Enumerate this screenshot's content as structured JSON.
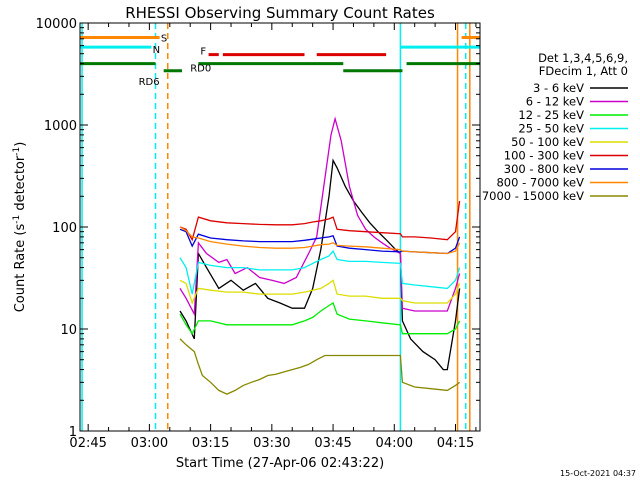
{
  "chart_data": {
    "type": "line",
    "title": "RHESSI Observing Summary Count Rates",
    "xlabel": "Start Time (27-Apr-06 02:43:22)",
    "ylabel_main": "Count Rate (s",
    "ylabel_sup1": "-1",
    "ylabel_mid": " detector",
    "ylabel_sup2": "-1",
    "ylabel_end": ")",
    "x_unit": "minutes after 02:43:22",
    "xlim": [
      0,
      98
    ],
    "ylim": [
      1,
      10000
    ],
    "y_scale": "log",
    "x_ticks": [
      {
        "t": 2,
        "label": "02:45"
      },
      {
        "t": 17,
        "label": "03:00"
      },
      {
        "t": 32,
        "label": "03:15"
      },
      {
        "t": 47,
        "label": "03:30"
      },
      {
        "t": 62,
        "label": "03:45"
      },
      {
        "t": 77,
        "label": "04:00"
      },
      {
        "t": 92,
        "label": "04:15"
      }
    ],
    "y_ticks": [
      {
        "v": 1,
        "label": "1"
      },
      {
        "v": 10,
        "label": "10"
      },
      {
        "v": 100,
        "label": "100"
      },
      {
        "v": 1000,
        "label": "1000"
      },
      {
        "v": 10000,
        "label": "10000"
      }
    ],
    "legend_header": [
      "Det 1,3,4,5,6,9,",
      "FDecim 1, Att 0"
    ],
    "legend_position": "right",
    "series": [
      {
        "name": "3 - 6 keV",
        "color": "#000000",
        "points": [
          [
            24.5,
            15
          ],
          [
            26,
            12
          ],
          [
            28,
            8
          ],
          [
            29,
            55
          ],
          [
            31,
            40
          ],
          [
            34,
            25
          ],
          [
            37,
            30
          ],
          [
            40,
            24
          ],
          [
            43,
            28
          ],
          [
            46,
            20
          ],
          [
            49,
            18
          ],
          [
            52,
            16
          ],
          [
            55,
            16
          ],
          [
            57,
            25
          ],
          [
            59,
            60
          ],
          [
            61,
            200
          ],
          [
            62,
            450
          ],
          [
            63,
            380
          ],
          [
            65,
            250
          ],
          [
            67,
            180
          ],
          [
            69,
            140
          ],
          [
            71,
            110
          ],
          [
            73,
            90
          ],
          [
            75,
            75
          ],
          [
            77,
            62
          ],
          [
            78.5,
            55
          ],
          [
            79,
            12
          ],
          [
            81,
            8
          ],
          [
            84,
            6
          ],
          [
            87,
            5
          ],
          [
            89,
            4
          ],
          [
            90,
            4
          ],
          [
            92,
            12
          ],
          [
            93,
            25
          ]
        ]
      },
      {
        "name": "6 - 12 keV",
        "color": "#cc00cc",
        "points": [
          [
            24.5,
            25
          ],
          [
            26,
            20
          ],
          [
            28,
            14
          ],
          [
            29,
            70
          ],
          [
            31,
            55
          ],
          [
            34,
            45
          ],
          [
            36,
            48
          ],
          [
            38,
            35
          ],
          [
            41,
            40
          ],
          [
            44,
            32
          ],
          [
            47,
            30
          ],
          [
            50,
            28
          ],
          [
            53,
            32
          ],
          [
            56,
            55
          ],
          [
            58,
            80
          ],
          [
            60,
            300
          ],
          [
            61.5,
            800
          ],
          [
            62.5,
            1150
          ],
          [
            64,
            700
          ],
          [
            66,
            250
          ],
          [
            68,
            130
          ],
          [
            70,
            95
          ],
          [
            72,
            80
          ],
          [
            74,
            70
          ],
          [
            76,
            62
          ],
          [
            78.5,
            55
          ],
          [
            79,
            16
          ],
          [
            82,
            15
          ],
          [
            86,
            15
          ],
          [
            90,
            15
          ],
          [
            92,
            25
          ],
          [
            93,
            35
          ]
        ]
      },
      {
        "name": "12 - 25 keV",
        "color": "#00ee00",
        "points": [
          [
            24.5,
            14
          ],
          [
            26,
            11
          ],
          [
            27.5,
            9
          ],
          [
            29,
            12
          ],
          [
            32,
            12
          ],
          [
            36,
            11
          ],
          [
            40,
            11
          ],
          [
            44,
            11
          ],
          [
            48,
            11
          ],
          [
            52,
            11
          ],
          [
            55,
            12
          ],
          [
            57,
            13
          ],
          [
            59,
            15
          ],
          [
            61,
            17
          ],
          [
            62,
            18
          ],
          [
            63,
            14
          ],
          [
            66,
            12.5
          ],
          [
            70,
            12
          ],
          [
            74,
            11.5
          ],
          [
            78.5,
            11
          ],
          [
            79,
            9
          ],
          [
            82,
            9
          ],
          [
            86,
            9
          ],
          [
            90,
            9
          ],
          [
            92,
            10
          ],
          [
            93,
            12
          ]
        ]
      },
      {
        "name": "25 - 50 keV",
        "color": "#00f0f0",
        "points": [
          [
            24.5,
            50
          ],
          [
            26,
            40
          ],
          [
            27.5,
            22
          ],
          [
            29,
            45
          ],
          [
            32,
            42
          ],
          [
            36,
            40
          ],
          [
            40,
            40
          ],
          [
            44,
            38
          ],
          [
            48,
            38
          ],
          [
            52,
            38
          ],
          [
            55,
            40
          ],
          [
            57,
            44
          ],
          [
            59,
            48
          ],
          [
            61,
            52
          ],
          [
            62,
            58
          ],
          [
            63,
            48
          ],
          [
            66,
            46
          ],
          [
            70,
            46
          ],
          [
            74,
            45
          ],
          [
            78.5,
            44
          ],
          [
            79,
            28
          ],
          [
            82,
            27
          ],
          [
            86,
            26
          ],
          [
            90,
            25
          ],
          [
            92,
            30
          ],
          [
            93,
            40
          ]
        ]
      },
      {
        "name": "50 - 100 keV",
        "color": "#dddd00",
        "points": [
          [
            24.5,
            30
          ],
          [
            26,
            28
          ],
          [
            27.5,
            18
          ],
          [
            29,
            25
          ],
          [
            32,
            24
          ],
          [
            36,
            23
          ],
          [
            40,
            23
          ],
          [
            44,
            22
          ],
          [
            48,
            22
          ],
          [
            52,
            22
          ],
          [
            55,
            23
          ],
          [
            57,
            24
          ],
          [
            59,
            25
          ],
          [
            61,
            28
          ],
          [
            62,
            30
          ],
          [
            63,
            22
          ],
          [
            66,
            21
          ],
          [
            70,
            21
          ],
          [
            74,
            20
          ],
          [
            78.5,
            20
          ],
          [
            79,
            19
          ],
          [
            82,
            18
          ],
          [
            86,
            18
          ],
          [
            90,
            18
          ],
          [
            92,
            22
          ],
          [
            93,
            28
          ]
        ]
      },
      {
        "name": "100 - 300 keV",
        "color": "#dd0000",
        "points": [
          [
            24.5,
            100
          ],
          [
            26,
            95
          ],
          [
            27.5,
            75
          ],
          [
            29,
            125
          ],
          [
            32,
            115
          ],
          [
            36,
            110
          ],
          [
            40,
            108
          ],
          [
            44,
            106
          ],
          [
            48,
            105
          ],
          [
            52,
            105
          ],
          [
            55,
            108
          ],
          [
            57,
            112
          ],
          [
            59,
            115
          ],
          [
            61,
            120
          ],
          [
            62,
            125
          ],
          [
            63,
            95
          ],
          [
            66,
            92
          ],
          [
            70,
            90
          ],
          [
            74,
            88
          ],
          [
            78.5,
            86
          ],
          [
            79,
            80
          ],
          [
            82,
            80
          ],
          [
            86,
            78
          ],
          [
            90,
            75
          ],
          [
            92,
            90
          ],
          [
            93,
            180
          ]
        ]
      },
      {
        "name": "300 - 800 keV",
        "color": "#0000dd",
        "points": [
          [
            24.5,
            95
          ],
          [
            26,
            90
          ],
          [
            27.5,
            65
          ],
          [
            29,
            85
          ],
          [
            32,
            78
          ],
          [
            36,
            75
          ],
          [
            40,
            73
          ],
          [
            44,
            72
          ],
          [
            48,
            72
          ],
          [
            52,
            72
          ],
          [
            55,
            74
          ],
          [
            57,
            76
          ],
          [
            59,
            78
          ],
          [
            61,
            80
          ],
          [
            62,
            82
          ],
          [
            63,
            65
          ],
          [
            66,
            62
          ],
          [
            70,
            60
          ],
          [
            74,
            58
          ],
          [
            78.5,
            57
          ],
          [
            79,
            58
          ],
          [
            82,
            57
          ],
          [
            86,
            56
          ],
          [
            90,
            55
          ],
          [
            92,
            62
          ],
          [
            93,
            80
          ]
        ]
      },
      {
        "name": "800 - 7000 keV",
        "color": "#ff8800",
        "points": [
          [
            24.5,
            100
          ],
          [
            26,
            92
          ],
          [
            27.5,
            80
          ],
          [
            29,
            78
          ],
          [
            32,
            72
          ],
          [
            36,
            68
          ],
          [
            40,
            65
          ],
          [
            44,
            63
          ],
          [
            48,
            62
          ],
          [
            52,
            62
          ],
          [
            55,
            63
          ],
          [
            57,
            65
          ],
          [
            59,
            67
          ],
          [
            61,
            68
          ],
          [
            62,
            70
          ],
          [
            63,
            66
          ],
          [
            66,
            65
          ],
          [
            70,
            64
          ],
          [
            74,
            62
          ],
          [
            78.5,
            60
          ],
          [
            79,
            58
          ],
          [
            82,
            57
          ],
          [
            86,
            56
          ],
          [
            90,
            55
          ],
          [
            92,
            58
          ],
          [
            93,
            70
          ]
        ]
      },
      {
        "name": "7000 - 15000 keV",
        "color": "#888800",
        "points": [
          [
            24.5,
            8
          ],
          [
            26,
            7
          ],
          [
            28,
            6
          ],
          [
            29,
            4.5
          ],
          [
            30,
            3.5
          ],
          [
            32,
            3
          ],
          [
            34,
            2.5
          ],
          [
            36,
            2.3
          ],
          [
            38,
            2.5
          ],
          [
            40,
            2.8
          ],
          [
            42,
            3
          ],
          [
            44,
            3.2
          ],
          [
            46,
            3.5
          ],
          [
            48,
            3.6
          ],
          [
            50,
            3.8
          ],
          [
            52,
            4
          ],
          [
            54,
            4.2
          ],
          [
            56,
            4.5
          ],
          [
            58,
            5
          ],
          [
            60,
            5.5
          ],
          [
            62,
            5.5
          ],
          [
            64,
            5.5
          ],
          [
            66,
            5.5
          ],
          [
            68,
            5.5
          ],
          [
            70,
            5.5
          ],
          [
            72,
            5.5
          ],
          [
            74,
            5.5
          ],
          [
            76,
            5.5
          ],
          [
            78.5,
            5.5
          ],
          [
            79,
            3
          ],
          [
            82,
            2.7
          ],
          [
            86,
            2.6
          ],
          [
            90,
            2.5
          ],
          [
            92,
            2.8
          ],
          [
            93,
            3
          ]
        ]
      }
    ],
    "segment_bars": [
      {
        "label": "S",
        "color": "#ff8800",
        "level": 7200,
        "segments": [
          [
            0,
            19.5
          ],
          [
            93.5,
            98
          ]
        ]
      },
      {
        "label": "N",
        "color": "#00f0f0",
        "level": 5800,
        "segments": [
          [
            0,
            17.5
          ],
          [
            78.5,
            98
          ]
        ]
      },
      {
        "label": "F",
        "color": "#dd0000",
        "level": 4900,
        "segments": [
          [
            31.5,
            34
          ],
          [
            35,
            55
          ],
          [
            58,
            75
          ]
        ]
      },
      {
        "label": "RD0",
        "color": "#007700",
        "level": 4000,
        "segments": [
          [
            0,
            18.5
          ],
          [
            29,
            64.5
          ],
          [
            80,
            98
          ]
        ]
      },
      {
        "label": "RD6",
        "color": "#007700",
        "level": 3400,
        "segments": [
          [
            20.5,
            25
          ],
          [
            64.5,
            79
          ]
        ]
      }
    ],
    "vertical_markers": [
      {
        "t": 0.5,
        "color": "#00f0f0",
        "style": "solid"
      },
      {
        "t": 18.5,
        "color": "#00f0f0",
        "style": "dashed"
      },
      {
        "t": 21.5,
        "color": "#ff8800",
        "style": "dashed"
      },
      {
        "t": 78.5,
        "color": "#00f0f0",
        "style": "solid"
      },
      {
        "t": 92.5,
        "color": "#ff8800",
        "style": "solid"
      },
      {
        "t": 94.5,
        "color": "#00f0f0",
        "style": "dashed"
      },
      {
        "t": 95.5,
        "color": "#ff8800",
        "style": "solid"
      }
    ],
    "footer_timestamp": "15-Oct-2021 04:37"
  }
}
